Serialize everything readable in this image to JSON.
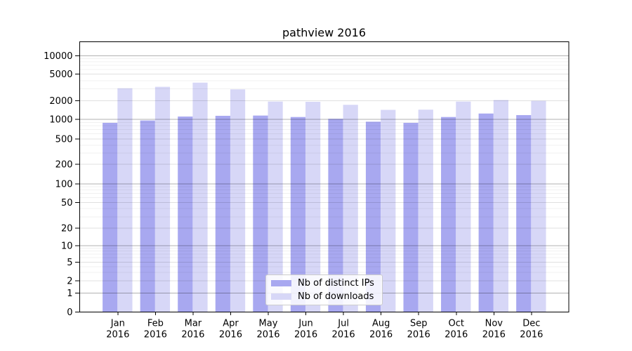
{
  "title": "pathview 2016",
  "chart_data": {
    "type": "bar",
    "title": "pathview 2016",
    "categories": [
      "Jan 2016",
      "Feb 2016",
      "Mar 2016",
      "Apr 2016",
      "May 2016",
      "Jun 2016",
      "Jul 2016",
      "Aug 2016",
      "Sep 2016",
      "Oct 2016",
      "Nov 2016",
      "Dec 2016"
    ],
    "x_tick_month": [
      "Jan",
      "Feb",
      "Mar",
      "Apr",
      "May",
      "Jun",
      "Jul",
      "Aug",
      "Sep",
      "Oct",
      "Nov",
      "Dec"
    ],
    "x_tick_year": "2016",
    "series": [
      {
        "name": "Nb of distinct IPs",
        "color": "#a8a8f0",
        "values": [
          885,
          960,
          1110,
          1140,
          1150,
          1090,
          1020,
          920,
          885,
          1090,
          1240,
          1170
        ]
      },
      {
        "name": "Nb of downloads",
        "color": "#d7d7f7",
        "values": [
          3070,
          3230,
          3730,
          2955,
          1930,
          1915,
          1710,
          1420,
          1430,
          1930,
          2040,
          1980
        ]
      }
    ],
    "yticks": [
      0,
      1,
      2,
      5,
      10,
      20,
      50,
      100,
      200,
      500,
      1000,
      2000,
      5000,
      10000
    ],
    "ylim": [
      0,
      13000
    ],
    "yscale": "log-like with linear 0-1 segment",
    "grid": true,
    "legend_position": "inside-bottom-center"
  },
  "colors": {
    "grid_major": "rgba(0,0,0,0.30)",
    "grid_mid": "rgba(0,0,0,0.12)",
    "grid_minor": "rgba(0,0,0,0.055)",
    "axis": "#000000",
    "background": "#ffffff"
  }
}
